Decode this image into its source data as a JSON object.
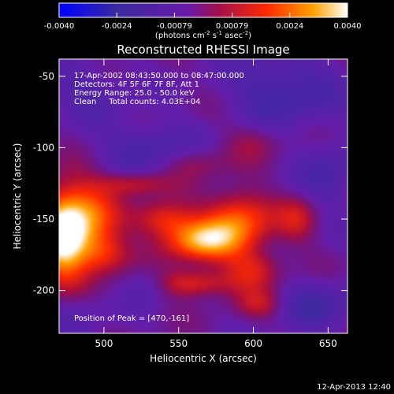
{
  "chart_data": {
    "type": "heatmap",
    "title": "Reconstructed RHESSI Image",
    "xlabel": "Heliocentric X (arcsec)",
    "ylabel": "Heliocentric Y (arcsec)",
    "xlim": [
      470,
      663
    ],
    "ylim": [
      -230,
      -38
    ],
    "xticks": [
      500,
      550,
      600,
      650
    ],
    "yticks": [
      -50,
      -100,
      -150,
      -200
    ],
    "colorbar": {
      "min": -0.004,
      "max": 0.004,
      "ticks": [
        "-0.0040",
        "-0.0024",
        "-0.00079",
        "0.00079",
        "0.0024",
        "0.0040"
      ],
      "label_main": "(photons cm",
      "label_exp1": "-2",
      "label_mid": " s",
      "label_exp2": "-1",
      "label_after": " asec",
      "label_exp3": "-2",
      "label_end": ")"
    },
    "annotations": [
      "17-Apr-2002 08:43:50.000 to 08:47:00.000",
      "Detectors: 4F 5F 6F 7F 8F, Att 1",
      "Energy Range: 25.0 - 50.0 keV",
      "Clean     Total counts: 4.03E+04"
    ],
    "peak_label": "Position of Peak = [470,-161]",
    "peak": {
      "x": 470,
      "y": -161
    },
    "blobs": [
      {
        "x": 472,
        "y": -162,
        "sx": 12,
        "sy": 22,
        "v": 1.0
      },
      {
        "x": 490,
        "y": -150,
        "sx": 14,
        "sy": 18,
        "v": 0.55
      },
      {
        "x": 500,
        "y": -175,
        "sx": 12,
        "sy": 10,
        "v": 0.4
      },
      {
        "x": 565,
        "y": -165,
        "sx": 18,
        "sy": 10,
        "v": 0.75
      },
      {
        "x": 590,
        "y": -150,
        "sx": 16,
        "sy": 14,
        "v": 0.6
      },
      {
        "x": 540,
        "y": -150,
        "sx": 14,
        "sy": 9,
        "v": 0.45
      },
      {
        "x": 560,
        "y": -195,
        "sx": 18,
        "sy": 7,
        "v": 0.45
      },
      {
        "x": 600,
        "y": -185,
        "sx": 14,
        "sy": 10,
        "v": 0.4
      },
      {
        "x": 520,
        "y": -125,
        "sx": 16,
        "sy": 6,
        "v": 0.35
      },
      {
        "x": 605,
        "y": -210,
        "sx": 12,
        "sy": 8,
        "v": 0.3
      },
      {
        "x": 630,
        "y": -150,
        "sx": 10,
        "sy": 12,
        "v": 0.3
      },
      {
        "x": 600,
        "y": -95,
        "sx": 14,
        "sy": 10,
        "v": 0.2
      },
      {
        "x": 560,
        "y": -110,
        "sx": 15,
        "sy": 8,
        "v": 0.25
      },
      {
        "x": 530,
        "y": -195,
        "sx": 10,
        "sy": 8,
        "v": -0.2
      },
      {
        "x": 530,
        "y": -100,
        "sx": 22,
        "sy": 12,
        "v": -0.3
      },
      {
        "x": 620,
        "y": -60,
        "sx": 25,
        "sy": 18,
        "v": -0.35
      },
      {
        "x": 490,
        "y": -60,
        "sx": 20,
        "sy": 14,
        "v": -0.2
      },
      {
        "x": 640,
        "y": -210,
        "sx": 20,
        "sy": 12,
        "v": -0.3
      },
      {
        "x": 480,
        "y": -215,
        "sx": 16,
        "sy": 10,
        "v": -0.15
      },
      {
        "x": 650,
        "y": -120,
        "sx": 14,
        "sy": 16,
        "v": -0.25
      }
    ]
  },
  "footer": {
    "date": "12-Apr-2013 12:40"
  }
}
